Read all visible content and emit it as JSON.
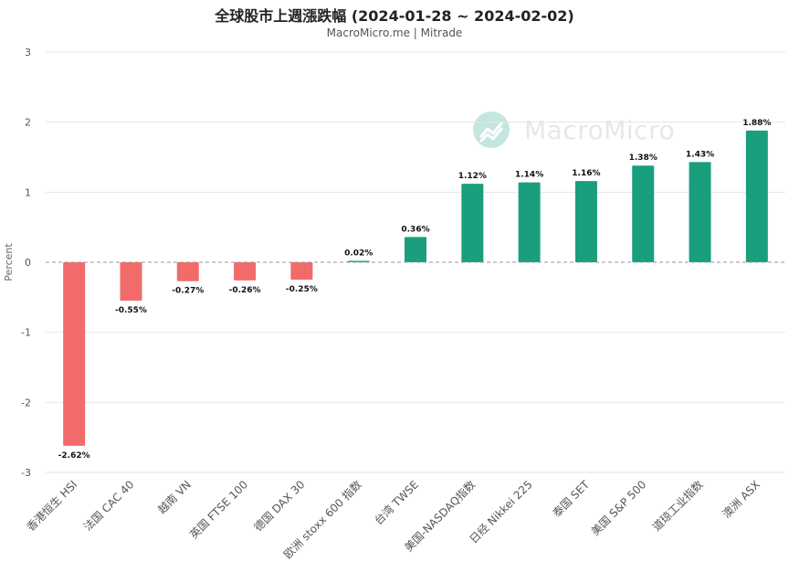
{
  "chart_data": {
    "type": "bar",
    "title": "全球股市上週漲跌幅 (2024-01-28 ~ 2024-02-02)",
    "subtitle": "MacroMicro.me | Mitrade",
    "ylabel": "Percent",
    "ylim": [
      -3,
      3
    ],
    "yticks": [
      3,
      2,
      1,
      0,
      -1,
      -2,
      -3
    ],
    "grid": true,
    "categories": [
      "香港恒生 HSI",
      "法国 CAC 40",
      "越南 VN",
      "英国 FTSE 100",
      "德国 DAX 30",
      "欧洲 stoxx 600 指数",
      "台湾 TWSE",
      "美国-NASDAQ指数",
      "日经 Nikkei 225",
      "泰国 SET",
      "美国 S&P 500",
      "道琼工业指数",
      "澳洲 ASX"
    ],
    "values": [
      -2.62,
      -0.55,
      -0.27,
      -0.26,
      -0.25,
      0.02,
      0.36,
      1.12,
      1.14,
      1.16,
      1.38,
      1.43,
      1.88
    ],
    "value_labels": [
      "-2.62%",
      "-0.55%",
      "-0.27%",
      "-0.26%",
      "-0.25%",
      "0.02%",
      "0.36%",
      "1.12%",
      "1.14%",
      "1.16%",
      "1.38%",
      "1.43%",
      "1.88%"
    ],
    "colors": {
      "positive": "#1a9e7e",
      "negative": "#f26b6b",
      "grid": "#e6e6e6",
      "zero_line": "#999999"
    }
  },
  "watermark": {
    "text": "MacroMicro",
    "icon": "chart-line-icon"
  }
}
